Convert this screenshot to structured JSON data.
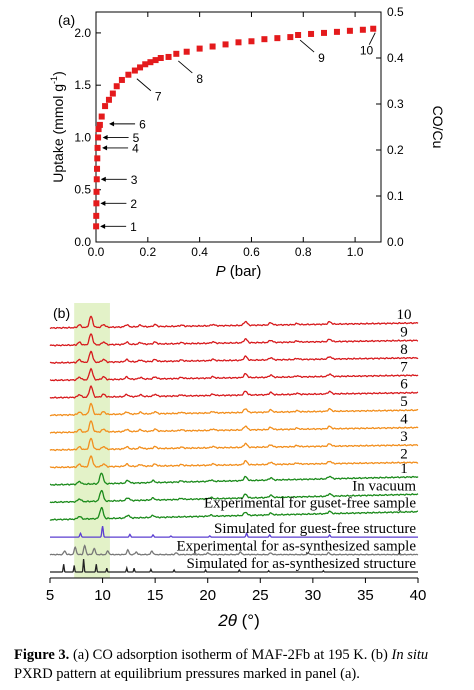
{
  "chart_data": [
    {
      "type": "scatter",
      "panel_label": "(a)",
      "xlabel_symbol": "P",
      "xlabel_unit": " (bar)",
      "ylabel": "Uptake (mmol g",
      "ylabel_sup": "-1",
      "ylabel_tail": ")",
      "y2label": "CO/Cu",
      "xlim": [
        0,
        1.1
      ],
      "ylim": [
        0,
        2.2
      ],
      "y2lim": [
        0,
        0.5
      ],
      "xticks": [
        "0.0",
        "0.2",
        "0.4",
        "0.6",
        "0.8",
        "1.0"
      ],
      "yticks": [
        "0.0",
        "0.5",
        "1.0",
        "1.5",
        "2.0"
      ],
      "y2ticks": [
        "0.0",
        "0.1",
        "0.2",
        "0.3",
        "0.4",
        "0.5"
      ],
      "marker_color": "#e41a1c",
      "series": [
        {
          "x": [
            0.0005,
            0.001,
            0.0015,
            0.002,
            0.003,
            0.004,
            0.005,
            0.006,
            0.008,
            0.01,
            0.015,
            0.022,
            0.035,
            0.05,
            0.065,
            0.08,
            0.1,
            0.125,
            0.15,
            0.17,
            0.19,
            0.21,
            0.23,
            0.25,
            0.28,
            0.31,
            0.35,
            0.4,
            0.45,
            0.5,
            0.55,
            0.6,
            0.65,
            0.7,
            0.75,
            0.78,
            0.83,
            0.88,
            0.93,
            0.98,
            1.03,
            1.07
          ],
          "y": [
            0.15,
            0.25,
            0.37,
            0.48,
            0.6,
            0.7,
            0.8,
            0.9,
            1.0,
            1.08,
            1.12,
            1.2,
            1.3,
            1.36,
            1.42,
            1.49,
            1.55,
            1.6,
            1.64,
            1.67,
            1.7,
            1.72,
            1.74,
            1.76,
            1.77,
            1.8,
            1.82,
            1.85,
            1.87,
            1.89,
            1.91,
            1.92,
            1.94,
            1.95,
            1.96,
            1.98,
            1.99,
            2.0,
            2.01,
            2.02,
            2.03,
            2.04
          ]
        }
      ],
      "annotations": [
        {
          "text": "1",
          "x": 0.0005,
          "y": 0.15
        },
        {
          "text": "2",
          "x": 0.0015,
          "y": 0.37
        },
        {
          "text": "3",
          "x": 0.003,
          "y": 0.6
        },
        {
          "text": "4",
          "x": 0.008,
          "y": 0.9
        },
        {
          "text": "5",
          "x": 0.01,
          "y": 1.0
        },
        {
          "text": "6",
          "x": 0.035,
          "y": 1.13
        },
        {
          "text": "7",
          "x": 0.15,
          "y": 1.6
        },
        {
          "text": "8",
          "x": 0.31,
          "y": 1.77
        },
        {
          "text": "9",
          "x": 0.78,
          "y": 1.97
        },
        {
          "text": "10",
          "x": 1.07,
          "y": 2.04
        }
      ],
      "grid": false
    },
    {
      "type": "line",
      "panel_label": "(b)",
      "xlabel_symbol": "2θ",
      "xlabel_unit": " (°)",
      "xlim": [
        5,
        40
      ],
      "xticks": [
        "5",
        "10",
        "15",
        "20",
        "25",
        "30",
        "35",
        "40"
      ],
      "highlight_range": [
        7.3,
        10.7
      ],
      "highlight_color": "#e3f2c8",
      "series": [
        {
          "name": "10",
          "color": "#d7191c",
          "kind": "exp"
        },
        {
          "name": "9",
          "color": "#d7191c",
          "kind": "exp"
        },
        {
          "name": "8",
          "color": "#d7191c",
          "kind": "exp"
        },
        {
          "name": "7",
          "color": "#d7191c",
          "kind": "exp"
        },
        {
          "name": "6",
          "color": "#d7191c",
          "kind": "exp"
        },
        {
          "name": "5",
          "color": "#f28e1c",
          "kind": "exp"
        },
        {
          "name": "4",
          "color": "#f28e1c",
          "kind": "exp"
        },
        {
          "name": "3",
          "color": "#f28e1c",
          "kind": "exp"
        },
        {
          "name": "2",
          "color": "#f28e1c",
          "kind": "exp"
        },
        {
          "name": "1",
          "color": "#1a8a1a",
          "kind": "exp"
        },
        {
          "name": "In vacuum",
          "color": "#1a8a1a",
          "kind": "exp"
        },
        {
          "name": "Experimental for guset-free sample",
          "color": "#1a8a1a",
          "kind": "exp"
        },
        {
          "name": "Simulated for guest-free structure",
          "color": "#5b3fd1",
          "kind": "sim"
        },
        {
          "name": "Experimental for as-synthesized sample",
          "color": "#777777",
          "kind": "as"
        },
        {
          "name": "Simulated for as-synthesized structure",
          "color": "#222222",
          "kind": "assim"
        }
      ]
    }
  ],
  "caption": {
    "label": "Figure 3.",
    "text_a": " (a) CO adsorption isotherm of MAF-2Fb at 195 K. (b) ",
    "italic": "In situ",
    "text_b": " PXRD pattern at equilibrium pressures marked in panel (a)."
  }
}
